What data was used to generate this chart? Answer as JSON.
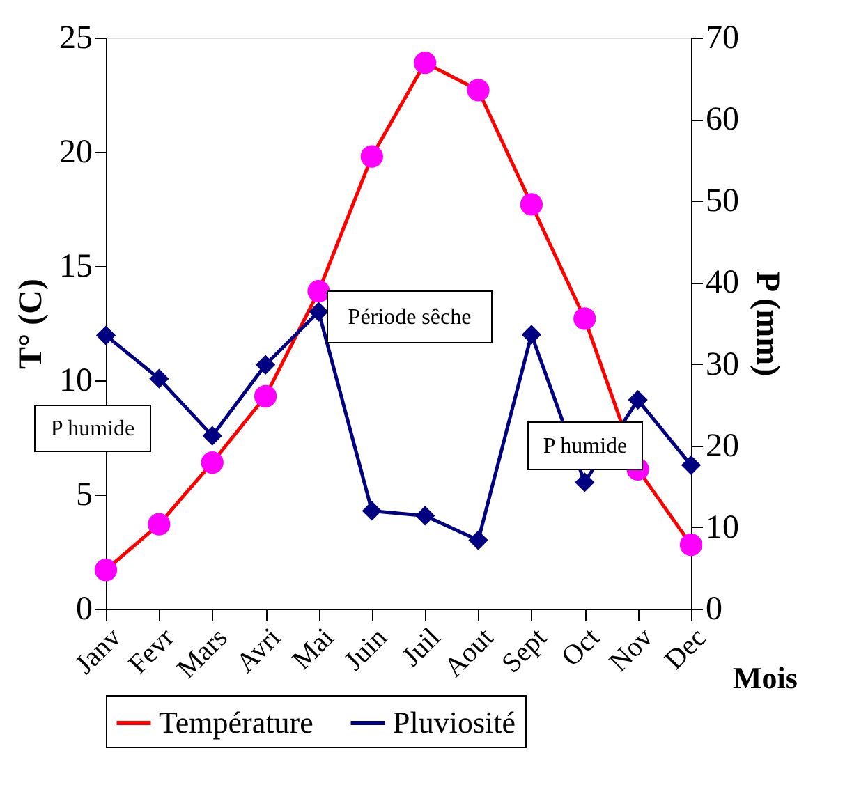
{
  "chart_data": {
    "type": "line",
    "xlabel": "Mois",
    "ylabel": "T° (C)",
    "y2label": "P (mm)",
    "categories": [
      "Janv",
      "Fevr",
      "Mars",
      "Avri",
      "Mai",
      "Juin",
      "Juil",
      "Aout",
      "Sept",
      "Oct",
      "Nov",
      "Dec"
    ],
    "series": [
      {
        "name": "Température",
        "color": "#ff0000",
        "marker": "circle",
        "colors": [
          "#ff00ff",
          "#ff00ff",
          "#ff00ff",
          "#ff00ff",
          "#ff00ff",
          "#ff00ff",
          "#ff00ff",
          "#ff00ff",
          "#ff00ff",
          "#ff00ff",
          "#ff00ff",
          "#ff00ff"
        ],
        "values": [
          1.7,
          3.7,
          6.4,
          9.3,
          13.9,
          19.8,
          23.9,
          22.7,
          17.7,
          12.7,
          6.1,
          2.8
        ]
      },
      {
        "name": "Pluviosité",
        "color": "#000080",
        "marker": "diamond",
        "axis": "y2",
        "values": [
          33.5,
          28.2,
          21.2,
          29.9,
          36.4,
          12.0,
          11.4,
          8.4,
          33.6,
          15.5,
          25.6,
          17.6
        ]
      }
    ],
    "ylim": [
      0,
      25
    ],
    "yticks": [
      0,
      5,
      10,
      15,
      20,
      25
    ],
    "y2lim": [
      0,
      70
    ],
    "y2ticks": [
      0,
      10,
      20,
      30,
      40,
      50,
      60,
      70
    ],
    "annotations": [
      "P  humide",
      "Période sêche",
      "P  humide"
    ],
    "grid": false,
    "legend": "bottom"
  }
}
